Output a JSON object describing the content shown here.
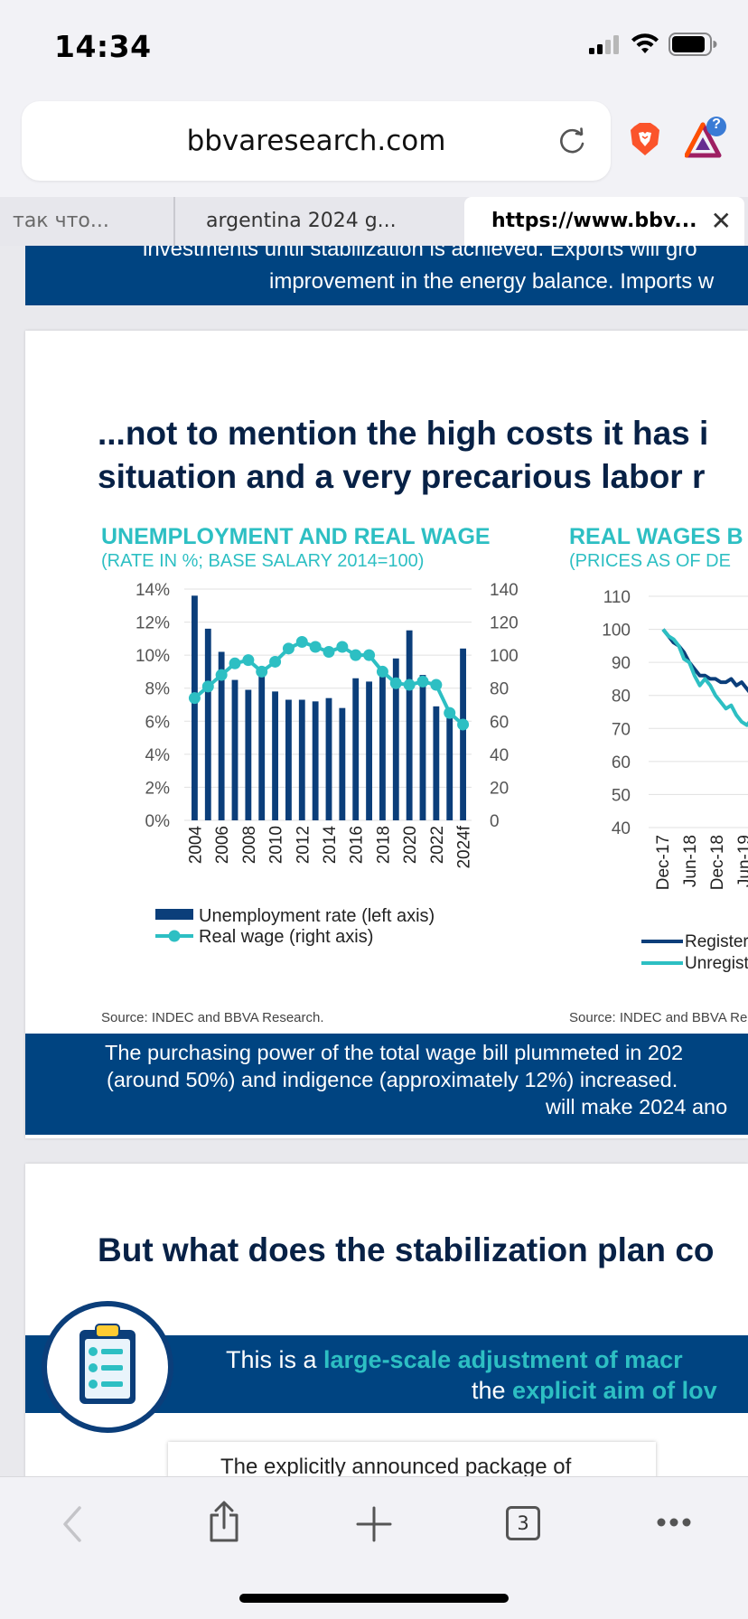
{
  "status_bar": {
    "time": "14:34"
  },
  "browser": {
    "url": "bbvaresearch.com",
    "tabs": [
      {
        "label": "так что..."
      },
      {
        "label": "argentina 2024 g..."
      },
      {
        "label": "https://www.bbv..."
      }
    ],
    "tab_count": "3",
    "bat_badge": "?"
  },
  "page": {
    "top_band": {
      "line1": "investments until stabilization is achieved. Exports will gro",
      "line2": "improvement in the energy balance. Imports w"
    },
    "section1": {
      "heading_line1": "...not to mention the high costs it has i",
      "heading_line2": "situation and a very precarious labor r",
      "chart1_title": "UNEMPLOYMENT AND REAL WAGE",
      "chart1_subtitle": "(RATE IN %; BASE SALARY 2014=100)",
      "chart2_title": "REAL WAGES B",
      "chart2_subtitle": "(PRICES AS OF DE",
      "source1": "Source: INDEC and BBVA Research.",
      "source2": "Source: INDEC and BBVA Re",
      "bottom_line1": "The purchasing power of the total wage bill plummeted in 202",
      "bottom_line2": "(around 50%) and indigence (approximately 12%) increased.",
      "bottom_line3": "will make 2024 ano"
    },
    "section2": {
      "heading": "But what does the stabilization plan co",
      "band_prefix1": "This is a ",
      "band_highlight1": "large-scale adjustment of macr",
      "band_prefix2": "the ",
      "band_highlight2": "explicit aim of lov",
      "note_text": "The explicitly announced package of"
    }
  },
  "colors": {
    "bbva_navy": "#004481",
    "bar_navy": "#0b3e7a",
    "teal": "#2dbfc3",
    "heading_navy": "#072146"
  },
  "chart_data": [
    {
      "type": "bar",
      "title": "UNEMPLOYMENT AND REAL WAGE",
      "subtitle": "(RATE IN %; BASE SALARY 2014=100)",
      "categories": [
        "2004",
        "2005",
        "2006",
        "2007",
        "2008",
        "2009",
        "2010",
        "2011",
        "2012",
        "2013",
        "2014",
        "2015",
        "2016",
        "2017",
        "2018",
        "2019",
        "2020",
        "2021",
        "2022",
        "2023",
        "2024f"
      ],
      "x_tick_labels": [
        "2004",
        "2006",
        "2008",
        "2010",
        "2012",
        "2014",
        "2016",
        "2018",
        "2020",
        "2022",
        "2024f"
      ],
      "series": [
        {
          "name": "Unemployment rate (left axis)",
          "axis": "left",
          "kind": "bar",
          "values": [
            13.6,
            11.6,
            10.2,
            8.5,
            7.9,
            8.7,
            7.8,
            7.3,
            7.3,
            7.2,
            7.4,
            6.8,
            8.6,
            8.4,
            9.2,
            9.8,
            11.5,
            8.8,
            6.9,
            6.2,
            10.4
          ]
        },
        {
          "name": "Real wage (right axis)",
          "axis": "right",
          "kind": "line",
          "values": [
            74,
            81,
            88,
            95,
            97,
            90,
            96,
            104,
            108,
            105,
            102,
            105,
            100,
            100,
            90,
            83,
            82,
            84,
            82,
            65,
            58
          ]
        }
      ],
      "y_left": {
        "ticks": [
          "0%",
          "2%",
          "4%",
          "6%",
          "8%",
          "10%",
          "12%",
          "14%"
        ],
        "range": [
          0,
          14
        ]
      },
      "y_right": {
        "ticks": [
          "0",
          "20",
          "40",
          "60",
          "80",
          "100",
          "120",
          "140"
        ],
        "range": [
          0,
          140
        ]
      },
      "grid": true,
      "legend": "bottom-left"
    },
    {
      "type": "line",
      "title": "REAL WAGES B",
      "subtitle": "(PRICES AS OF DE",
      "x_tick_labels": [
        "Dec-17",
        "Jun-18",
        "Dec-18",
        "Jun-19",
        "Dec-19"
      ],
      "x": [
        0,
        1,
        2,
        3,
        4,
        5,
        6,
        7,
        8,
        9,
        10,
        11,
        12,
        13,
        14,
        15,
        16,
        17,
        18,
        19,
        20,
        21,
        22,
        23,
        24,
        25,
        26
      ],
      "series": [
        {
          "name": "Registered",
          "values": [
            100,
            98,
            96,
            95,
            93,
            90,
            88,
            86,
            86,
            85,
            85,
            84,
            84,
            85,
            83,
            84,
            82,
            80,
            84,
            86,
            null,
            null,
            null,
            null,
            null,
            null,
            null
          ]
        },
        {
          "name": "Unregistered",
          "values": [
            100,
            98,
            97,
            95,
            91,
            90,
            86,
            83,
            85,
            83,
            80,
            78,
            76,
            77,
            74,
            72,
            71,
            73,
            74,
            null,
            null,
            null,
            null,
            null,
            null,
            null,
            null
          ]
        }
      ],
      "y": {
        "ticks": [
          "40",
          "50",
          "60",
          "70",
          "80",
          "90",
          "100",
          "110"
        ],
        "range": [
          40,
          110
        ]
      },
      "grid": true,
      "legend": "bottom-left",
      "legend_entries": [
        "Registerec",
        "Unregister"
      ]
    }
  ]
}
